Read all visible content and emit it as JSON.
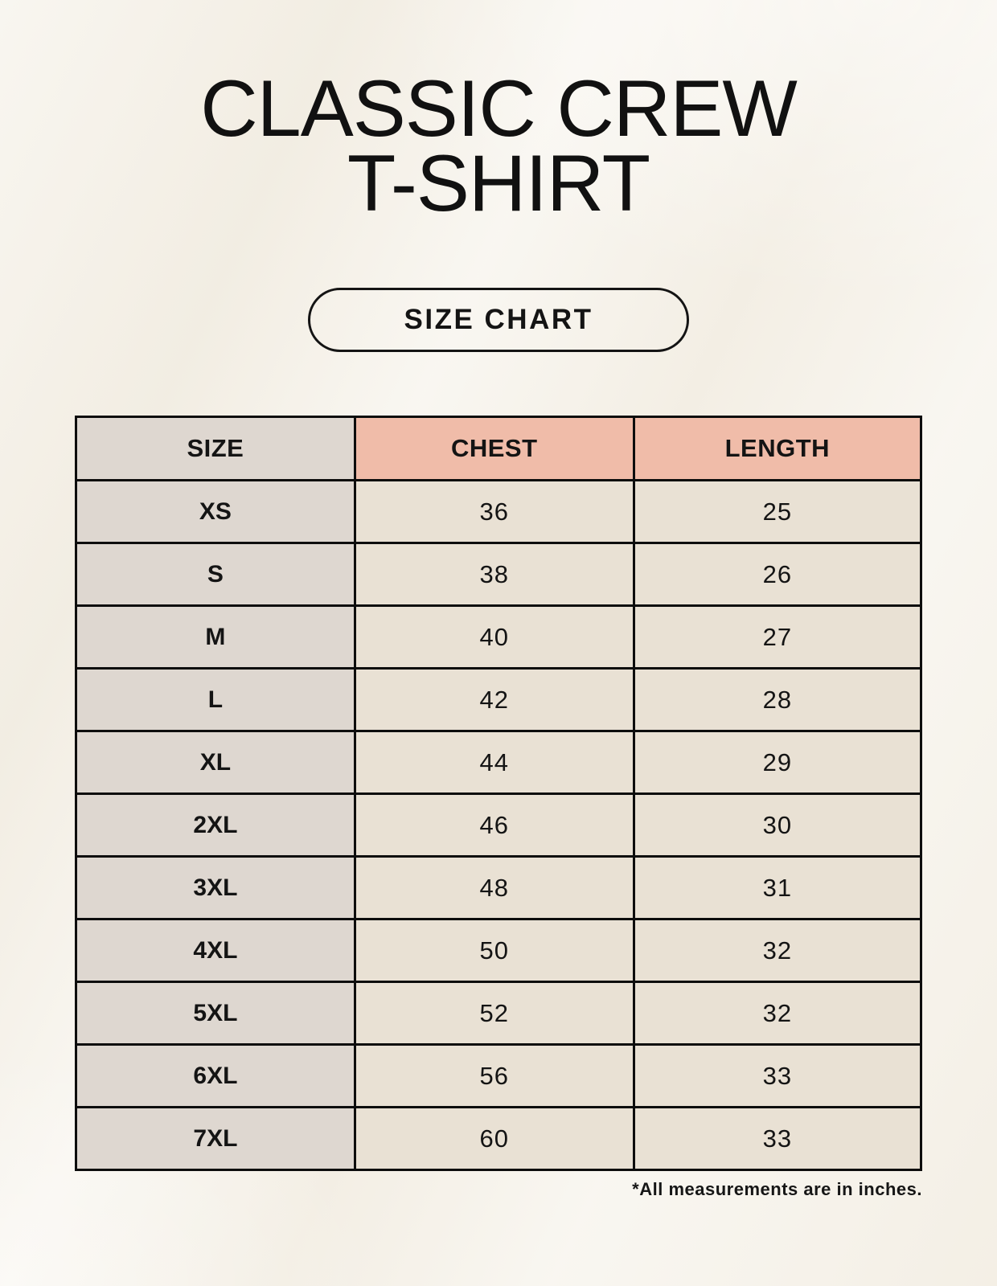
{
  "page": {
    "title_line1": "CLASSIC CREW",
    "title_line2": "T-SHIRT",
    "button_label": "SIZE CHART",
    "footnote": "*All measurements are in inches."
  },
  "colors": {
    "background": "#f5f1e8",
    "size_column_bg": "#ded7d0",
    "header_accent_bg": "#f0bca9",
    "data_cell_bg": "#e9e1d4",
    "border": "#0d0d0d",
    "text": "#141414"
  },
  "table": {
    "headers": [
      "SIZE",
      "CHEST",
      "LENGTH"
    ],
    "rows": [
      {
        "size": "XS",
        "chest": "36",
        "length": "25"
      },
      {
        "size": "S",
        "chest": "38",
        "length": "26"
      },
      {
        "size": "M",
        "chest": "40",
        "length": "27"
      },
      {
        "size": "L",
        "chest": "42",
        "length": "28"
      },
      {
        "size": "XL",
        "chest": "44",
        "length": "29"
      },
      {
        "size": "2XL",
        "chest": "46",
        "length": "30"
      },
      {
        "size": "3XL",
        "chest": "48",
        "length": "31"
      },
      {
        "size": "4XL",
        "chest": "50",
        "length": "32"
      },
      {
        "size": "5XL",
        "chest": "52",
        "length": "32"
      },
      {
        "size": "6XL",
        "chest": "56",
        "length": "33"
      },
      {
        "size": "7XL",
        "chest": "60",
        "length": "33"
      }
    ]
  }
}
